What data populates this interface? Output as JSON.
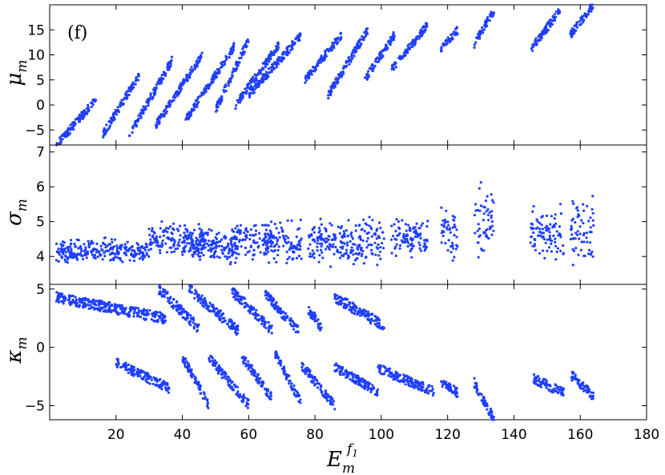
{
  "figure": {
    "panel_tag": "(f)",
    "x_axis": {
      "label_base": "E",
      "label_sub": "m",
      "label_sup": "f",
      "label_sup_sub": "1",
      "range": [
        0,
        180
      ],
      "ticks": [
        20,
        40,
        60,
        80,
        100,
        120,
        140,
        160,
        180
      ]
    },
    "marker_color": "#1f3fff"
  },
  "chart_data": [
    {
      "type": "scatter",
      "panel": "top",
      "ylabel_base": "μ",
      "ylabel_sub": "m",
      "xlim": [
        0,
        180
      ],
      "ylim": [
        -8,
        20
      ],
      "yticks": [
        -5,
        0,
        5,
        10,
        15
      ],
      "clusters": [
        {
          "x": [
            2,
            14
          ],
          "y": [
            -8,
            1
          ]
        },
        {
          "x": [
            16,
            27
          ],
          "y": [
            -6,
            6
          ]
        },
        {
          "x": [
            24,
            37
          ],
          "y": [
            -6,
            9
          ]
        },
        {
          "x": [
            32,
            46
          ],
          "y": [
            -4,
            10
          ]
        },
        {
          "x": [
            41,
            56
          ],
          "y": [
            -3,
            12
          ]
        },
        {
          "x": [
            50,
            60
          ],
          "y": [
            -1,
            13
          ]
        },
        {
          "x": [
            56,
            69
          ],
          "y": [
            0,
            12
          ]
        },
        {
          "x": [
            60,
            76
          ],
          "y": [
            2,
            14
          ]
        },
        {
          "x": [
            77,
            88
          ],
          "y": [
            5,
            14
          ]
        },
        {
          "x": [
            84,
            96
          ],
          "y": [
            2,
            15
          ]
        },
        {
          "x": [
            95,
            104
          ],
          "y": [
            5,
            14
          ]
        },
        {
          "x": [
            103,
            114
          ],
          "y": [
            7,
            16
          ]
        },
        {
          "x": [
            118,
            123
          ],
          "y": [
            11,
            15
          ]
        },
        {
          "x": [
            128,
            134
          ],
          "y": [
            12,
            19
          ]
        },
        {
          "x": [
            145,
            154
          ],
          "y": [
            11,
            19
          ]
        },
        {
          "x": [
            157,
            164
          ],
          "y": [
            14,
            20
          ]
        }
      ]
    },
    {
      "type": "scatter",
      "panel": "middle",
      "ylabel_base": "σ",
      "ylabel_sub": "m",
      "xlim": [
        0,
        180
      ],
      "ylim": [
        3.2,
        7.2
      ],
      "yticks": [
        4,
        5,
        6,
        7
      ],
      "clusters": [
        {
          "x": [
            2,
            30
          ],
          "y": [
            3.7,
            4.6
          ]
        },
        {
          "x": [
            30,
            47
          ],
          "y": [
            3.8,
            5.2
          ]
        },
        {
          "x": [
            40,
            57
          ],
          "y": [
            3.7,
            4.9
          ]
        },
        {
          "x": [
            55,
            67
          ],
          "y": [
            3.6,
            5.3
          ]
        },
        {
          "x": [
            65,
            76
          ],
          "y": [
            3.6,
            5.2
          ]
        },
        {
          "x": [
            78,
            89
          ],
          "y": [
            3.6,
            5.3
          ]
        },
        {
          "x": [
            88,
            101
          ],
          "y": [
            3.5,
            5.4
          ]
        },
        {
          "x": [
            103,
            114
          ],
          "y": [
            3.8,
            5.3
          ]
        },
        {
          "x": [
            118,
            123
          ],
          "y": [
            3.6,
            5.6
          ]
        },
        {
          "x": [
            128,
            134
          ],
          "y": [
            3.7,
            6.3
          ]
        },
        {
          "x": [
            145,
            155
          ],
          "y": [
            3.5,
            5.7
          ]
        },
        {
          "x": [
            157,
            164
          ],
          "y": [
            3.5,
            6.0
          ]
        }
      ]
    },
    {
      "type": "scatter",
      "panel": "bottom",
      "ylabel_base": "κ",
      "ylabel_sub": "m",
      "xlim": [
        0,
        180
      ],
      "ylim": [
        -6.2,
        5.4
      ],
      "yticks": [
        -5,
        0,
        5
      ],
      "clusters": [
        {
          "x": [
            2,
            35
          ],
          "y": [
            2.0,
            4.3
          ]
        },
        {
          "x": [
            33,
            45
          ],
          "y": [
            0.8,
            5.0
          ]
        },
        {
          "x": [
            42,
            57
          ],
          "y": [
            0.5,
            5.0
          ]
        },
        {
          "x": [
            55,
            67
          ],
          "y": [
            0.7,
            4.8
          ]
        },
        {
          "x": [
            65,
            75
          ],
          "y": [
            0.7,
            4.5
          ]
        },
        {
          "x": [
            78,
            82
          ],
          "y": [
            1.4,
            3.2
          ]
        },
        {
          "x": [
            86,
            101
          ],
          "y": [
            1.2,
            4.3
          ]
        },
        {
          "x": [
            20,
            36
          ],
          "y": [
            -3.5,
            -1.3
          ]
        },
        {
          "x": [
            40,
            48
          ],
          "y": [
            -4.9,
            -0.8
          ]
        },
        {
          "x": [
            48,
            60
          ],
          "y": [
            -4.9,
            -0.9
          ]
        },
        {
          "x": [
            58,
            67
          ],
          "y": [
            -4.3,
            -0.8
          ]
        },
        {
          "x": [
            68,
            76
          ],
          "y": [
            -4.9,
            -0.5
          ]
        },
        {
          "x": [
            76,
            86
          ],
          "y": [
            -5.0,
            -1.5
          ]
        },
        {
          "x": [
            86,
            99
          ],
          "y": [
            -3.8,
            -1.7
          ]
        },
        {
          "x": [
            99,
            116
          ],
          "y": [
            -3.8,
            -1.8
          ]
        },
        {
          "x": [
            118,
            123
          ],
          "y": [
            -3.9,
            -3.0
          ]
        },
        {
          "x": [
            128,
            134
          ],
          "y": [
            -6.2,
            -3.0
          ]
        },
        {
          "x": [
            146,
            155
          ],
          "y": [
            -3.9,
            -2.7
          ]
        },
        {
          "x": [
            157,
            164
          ],
          "y": [
            -4.2,
            -2.3
          ]
        }
      ]
    }
  ]
}
